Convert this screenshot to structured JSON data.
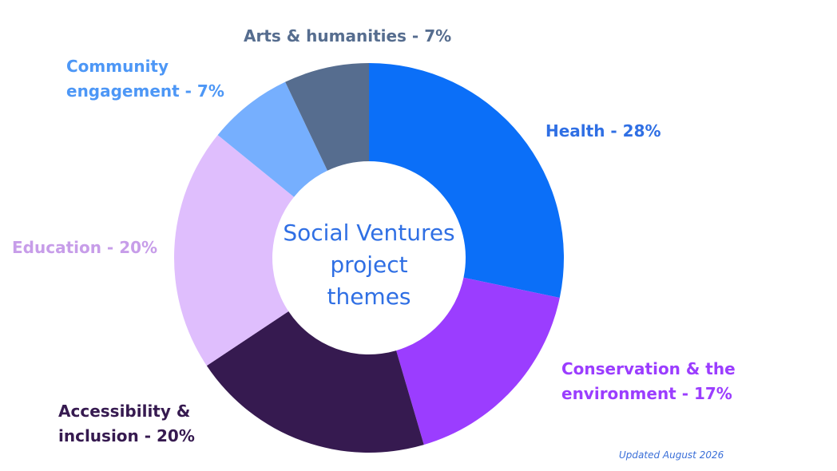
{
  "chart_data": {
    "type": "pie",
    "variant": "donut",
    "title": "Social Ventures\nproject\nthemes",
    "footnote": "Updated August 2026",
    "legend": "none",
    "title_color": "#2f6fe4",
    "footnote_color": "#3a6fd8",
    "slices": [
      {
        "label": "Health - 28%",
        "value": 28,
        "color": "#0b6ff8",
        "label_color": "#2f6fe4"
      },
      {
        "label": "Conservation & the\nenvironment - 17%",
        "value": 17,
        "color": "#9b3dff",
        "label_color": "#9b3dff"
      },
      {
        "label": "Accessibility &\ninclusion - 20%",
        "value": 20,
        "color": "#361a50",
        "label_color": "#361a50"
      },
      {
        "label": "Education - 20%",
        "value": 20,
        "color": "#dfbefd",
        "label_color": "#c79de9"
      },
      {
        "label": "Community\nengagement - 7%",
        "value": 7,
        "color": "#76affe",
        "label_color": "#4d97f6"
      },
      {
        "label": "Arts & humanities - 7%",
        "value": 7,
        "color": "#566d8f",
        "label_color": "#566d8f"
      }
    ]
  }
}
